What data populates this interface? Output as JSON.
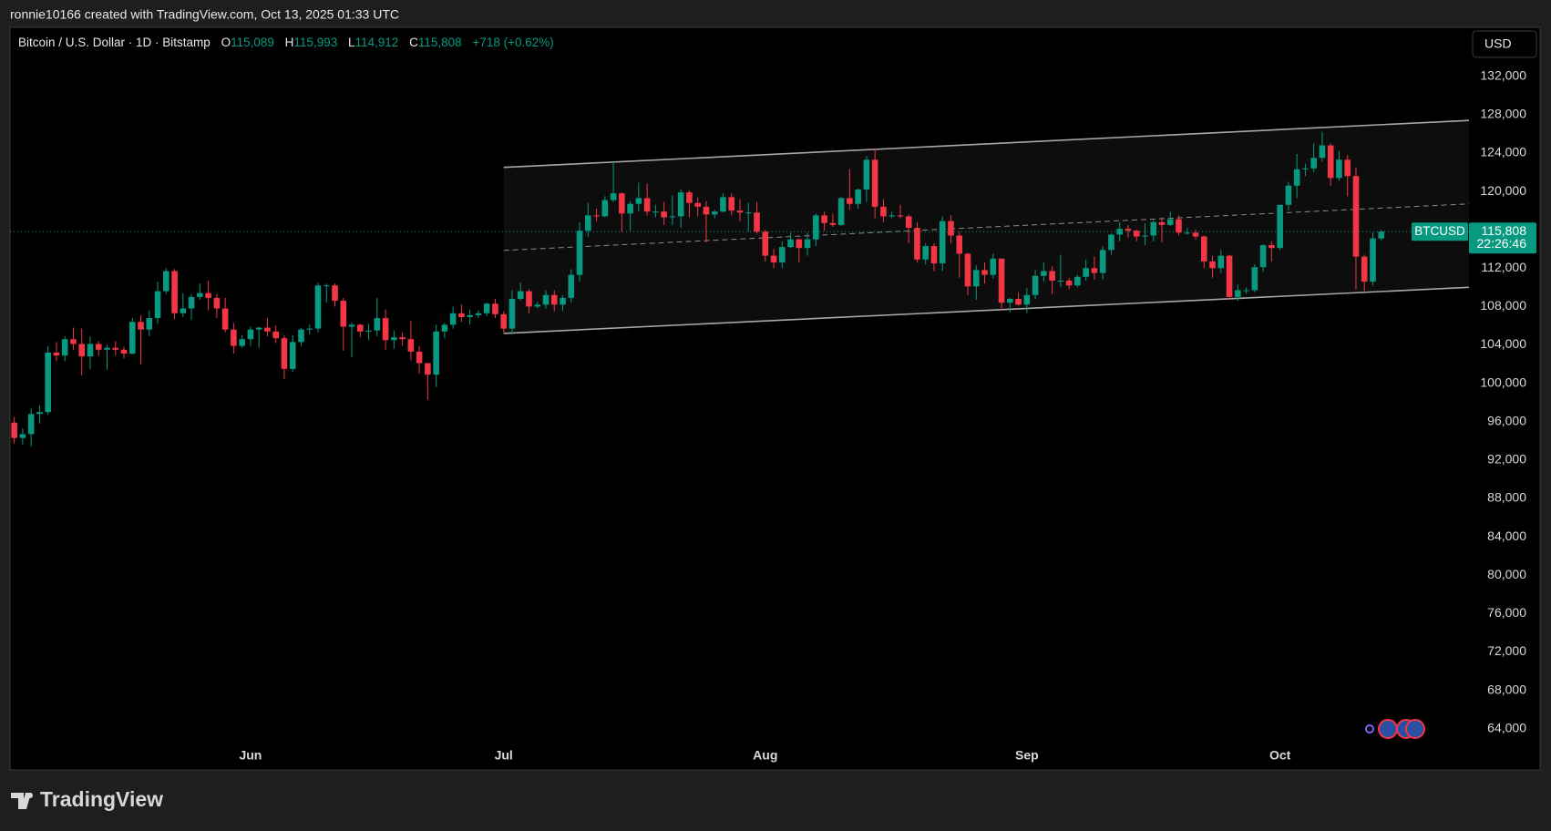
{
  "header": {
    "attribution": "ronnie10166 created with TradingView.com, Oct 13, 2025 01:33 UTC"
  },
  "legend": {
    "title": "Bitcoin / U.S. Dollar · 1D · Bitstamp",
    "open_key": "O",
    "open": "115,089",
    "high_key": "H",
    "high": "115,993",
    "low_key": "L",
    "low": "114,912",
    "close_key": "C",
    "close": "115,808",
    "change": "+718 (+0.62%)"
  },
  "currency": "USD",
  "brand": "TradingView",
  "chart_data": {
    "type": "candlestick",
    "up_color": "#089981",
    "down_color": "#f23645",
    "categories": [
      null,
      null,
      null,
      null,
      null,
      null,
      null,
      null,
      null,
      null,
      null,
      null,
      null,
      null,
      null,
      null,
      null,
      null,
      null,
      null,
      null,
      null,
      null,
      null,
      null,
      null,
      null,
      null,
      "Jun",
      null,
      null,
      null,
      null,
      null,
      null,
      null,
      null,
      null,
      null,
      null,
      null,
      null,
      null,
      null,
      null,
      null,
      null,
      null,
      null,
      null,
      null,
      null,
      null,
      null,
      null,
      null,
      null,
      null,
      "Jul",
      null,
      null,
      null,
      null,
      null,
      null,
      null,
      null,
      null,
      null,
      null,
      null,
      null,
      null,
      null,
      null,
      null,
      null,
      null,
      null,
      null,
      null,
      null,
      null,
      null,
      null,
      null,
      null,
      null,
      null,
      "Aug",
      null,
      null,
      null,
      null,
      null,
      null,
      null,
      null,
      null,
      null,
      null,
      null,
      null,
      null,
      null,
      null,
      null,
      null,
      null,
      null,
      null,
      null,
      null,
      null,
      null,
      null,
      null,
      null,
      null,
      null,
      "Sep",
      null,
      null,
      null,
      null,
      null,
      null,
      null,
      null,
      null,
      null,
      null,
      null,
      null,
      null,
      null,
      null,
      null,
      null,
      null,
      null,
      null,
      null,
      null,
      null,
      null,
      null,
      null,
      null,
      null,
      "Oct",
      null,
      null,
      null,
      null,
      null,
      null,
      null,
      null,
      null,
      null,
      null,
      null
    ],
    "open": [
      95900,
      94300,
      94700,
      96800,
      97000,
      103200,
      102900,
      104600,
      104100,
      102800,
      104100,
      103500,
      103700,
      103500,
      103100,
      106400,
      105600,
      106800,
      109600,
      111700,
      107300,
      107800,
      109000,
      109400,
      108900,
      107800,
      105600,
      103900,
      104600,
      105600,
      105800,
      105400,
      104700,
      101500,
      104300,
      105600,
      105700,
      110200,
      110200,
      108600,
      105900,
      106100,
      105400,
      105500,
      106800,
      104500,
      104800,
      104600,
      103300,
      102100,
      100900,
      105400,
      106100,
      107300,
      106900,
      107100,
      107300,
      108300,
      107200,
      105700,
      108800,
      109600,
      108000,
      108200,
      109200,
      108200,
      108900,
      111300,
      115900,
      117500,
      117400,
      119100,
      119800,
      117700,
      118700,
      119300,
      117900,
      117900,
      117300,
      117400,
      119900,
      118800,
      118400,
      117600,
      117900,
      119400,
      118000,
      117800,
      117800,
      115800,
      113300,
      112600,
      114200,
      115000,
      114100,
      115000,
      117500,
      116700,
      116500,
      119300,
      118700,
      120200,
      123300,
      118400,
      117400,
      117500,
      117400,
      116200,
      112900,
      114300,
      112500,
      116900,
      115400,
      113500,
      110100,
      111800,
      111300,
      113000,
      108400,
      108800,
      108200,
      109200,
      111200,
      111700,
      110700,
      110700,
      110200,
      111100,
      112000,
      111500,
      113900,
      115500,
      116100,
      115900,
      115300,
      115400,
      116800,
      116500,
      117100,
      115700,
      115700,
      115300,
      112700,
      112000,
      113300,
      109000,
      109700,
      109700,
      112100,
      114400,
      114100,
      118600,
      120600,
      122300,
      122400,
      123500,
      124800,
      121400,
      123300,
      121600,
      113200,
      110600,
      115089
    ],
    "high": [
      96500,
      95300,
      97400,
      97700,
      103900,
      104300,
      104900,
      105800,
      105700,
      104900,
      104400,
      104000,
      104400,
      103800,
      106800,
      107100,
      107600,
      110600,
      112000,
      111900,
      109400,
      109300,
      110400,
      110700,
      109300,
      108900,
      106300,
      105000,
      105900,
      105900,
      106800,
      106000,
      105000,
      105000,
      105800,
      106100,
      110500,
      110400,
      110400,
      108900,
      106300,
      106200,
      106200,
      108900,
      107700,
      105500,
      105300,
      106500,
      103900,
      102100,
      106100,
      106300,
      108000,
      108200,
      107700,
      107600,
      108400,
      108800,
      107500,
      109700,
      110500,
      109800,
      108500,
      109700,
      109700,
      109200,
      111900,
      116800,
      118800,
      118200,
      119500,
      123100,
      119900,
      119000,
      120900,
      120800,
      118600,
      118900,
      119600,
      120200,
      120100,
      119400,
      119000,
      118100,
      119800,
      119800,
      119200,
      118800,
      118900,
      116000,
      114000,
      114800,
      115700,
      115100,
      115700,
      117700,
      117900,
      117700,
      119400,
      122300,
      120300,
      123700,
      124500,
      119200,
      117900,
      118600,
      117600,
      116800,
      114600,
      114600,
      117400,
      117500,
      115800,
      113600,
      112300,
      112600,
      113500,
      113000,
      108900,
      109500,
      109900,
      111800,
      112600,
      112200,
      113400,
      111000,
      111300,
      112900,
      113200,
      114300,
      115600,
      116800,
      116500,
      116000,
      116700,
      117000,
      117300,
      117900,
      117500,
      116200,
      116000,
      115400,
      113300,
      113900,
      113400,
      110300,
      110000,
      112400,
      114500,
      114800,
      118600,
      121000,
      123900,
      122900,
      125000,
      126200,
      125000,
      124200,
      123800,
      122500,
      113400,
      115700,
      115993
    ],
    "low": [
      93700,
      93600,
      93400,
      95800,
      96700,
      102300,
      102300,
      103500,
      100800,
      101500,
      102900,
      101400,
      102900,
      102600,
      103000,
      102000,
      104900,
      106200,
      109300,
      106700,
      106900,
      106600,
      108700,
      107600,
      106800,
      105300,
      103100,
      103700,
      103900,
      103700,
      104900,
      104200,
      100400,
      101200,
      103900,
      105100,
      105300,
      108400,
      108000,
      103400,
      102700,
      104800,
      104500,
      104900,
      103500,
      103600,
      103900,
      102400,
      101000,
      98300,
      99600,
      104700,
      105700,
      106400,
      106100,
      106800,
      107000,
      106800,
      105300,
      105100,
      108600,
      107300,
      107800,
      107800,
      107500,
      107500,
      108400,
      110600,
      115300,
      116900,
      117300,
      118900,
      115800,
      115900,
      117900,
      117500,
      117300,
      116500,
      116500,
      116200,
      117300,
      117400,
      114700,
      117200,
      117800,
      117500,
      116900,
      115800,
      115600,
      112700,
      112000,
      112000,
      114100,
      112600,
      113300,
      114300,
      115900,
      116300,
      116400,
      118100,
      118200,
      118900,
      117200,
      116800,
      117200,
      117200,
      114600,
      112600,
      112400,
      111700,
      111700,
      114600,
      111000,
      109200,
      108700,
      110400,
      110900,
      107600,
      107400,
      108100,
      107300,
      108800,
      110600,
      109300,
      110000,
      109800,
      110000,
      110700,
      110800,
      110800,
      113400,
      114800,
      115200,
      114800,
      114400,
      114800,
      114700,
      116400,
      115400,
      115500,
      115000,
      112000,
      111000,
      111500,
      108700,
      108600,
      109300,
      109500,
      111600,
      112700,
      113900,
      118000,
      119300,
      121600,
      122000,
      123100,
      120600,
      121100,
      119500,
      109800,
      109600,
      110200,
      114912
    ],
    "close": [
      94300,
      94700,
      96800,
      97000,
      103200,
      102900,
      104600,
      104100,
      102800,
      104100,
      103500,
      103700,
      103500,
      103100,
      106400,
      105600,
      106800,
      109600,
      111700,
      107300,
      107800,
      109000,
      109400,
      108900,
      107800,
      105600,
      103900,
      104600,
      105600,
      105800,
      105400,
      104700,
      101500,
      104300,
      105600,
      105700,
      110200,
      110200,
      108600,
      105900,
      106100,
      105400,
      105500,
      106800,
      104500,
      104800,
      104600,
      103300,
      102100,
      100900,
      105400,
      106100,
      107300,
      106900,
      107100,
      107300,
      108300,
      107200,
      105700,
      108800,
      109600,
      108000,
      108200,
      109200,
      108200,
      108900,
      111300,
      115900,
      117500,
      117400,
      119100,
      119800,
      117700,
      118700,
      119300,
      117900,
      117900,
      117300,
      117400,
      119900,
      118800,
      118400,
      117600,
      117900,
      119400,
      118000,
      117800,
      117800,
      115800,
      113300,
      112600,
      114200,
      115000,
      114100,
      115000,
      117500,
      116700,
      116500,
      119300,
      118700,
      120200,
      123300,
      118400,
      117400,
      117500,
      117400,
      116200,
      112900,
      114300,
      112500,
      116900,
      115400,
      113500,
      110100,
      111800,
      111300,
      113000,
      108400,
      108800,
      108200,
      109200,
      111200,
      111700,
      110700,
      110700,
      110200,
      111100,
      112000,
      111500,
      113900,
      115500,
      116100,
      115900,
      115300,
      115400,
      116800,
      116500,
      117100,
      115700,
      115700,
      115300,
      112700,
      112000,
      113300,
      109000,
      109700,
      109700,
      112100,
      114400,
      114100,
      118600,
      120600,
      122300,
      122400,
      123500,
      124800,
      121400,
      123300,
      121600,
      113200,
      110600,
      115100,
      115808
    ],
    "ylim": [
      59700,
      137100
    ],
    "yticks": [
      {
        "value": 64000,
        "label": "64,000"
      },
      {
        "value": 68000,
        "label": "68,000"
      },
      {
        "value": 72000,
        "label": "72,000"
      },
      {
        "value": 76000,
        "label": "76,000"
      },
      {
        "value": 80000,
        "label": "80,000"
      },
      {
        "value": 84000,
        "label": "84,000"
      },
      {
        "value": 88000,
        "label": "88,000"
      },
      {
        "value": 92000,
        "label": "92,000"
      },
      {
        "value": 96000,
        "label": "96,000"
      },
      {
        "value": 100000,
        "label": "100,000"
      },
      {
        "value": 104000,
        "label": "104,000"
      },
      {
        "value": 108000,
        "label": "108,000"
      },
      {
        "value": 112000,
        "label": "112,000"
      },
      {
        "value": 116000,
        "label": "116,000"
      },
      {
        "value": 120000,
        "label": "120,000"
      },
      {
        "value": 124000,
        "label": "124,000"
      },
      {
        "value": 128000,
        "label": "128,000"
      },
      {
        "value": 132000,
        "label": "132,000"
      }
    ],
    "channel": {
      "x": [
        58,
        172.4
      ],
      "upper": [
        122500,
        127400
      ],
      "lower": [
        105200,
        110000
      ]
    },
    "last_price": {
      "value": 115808,
      "label": "115,808",
      "symbol": "BTCUSD",
      "countdown": "22:26:46"
    }
  }
}
